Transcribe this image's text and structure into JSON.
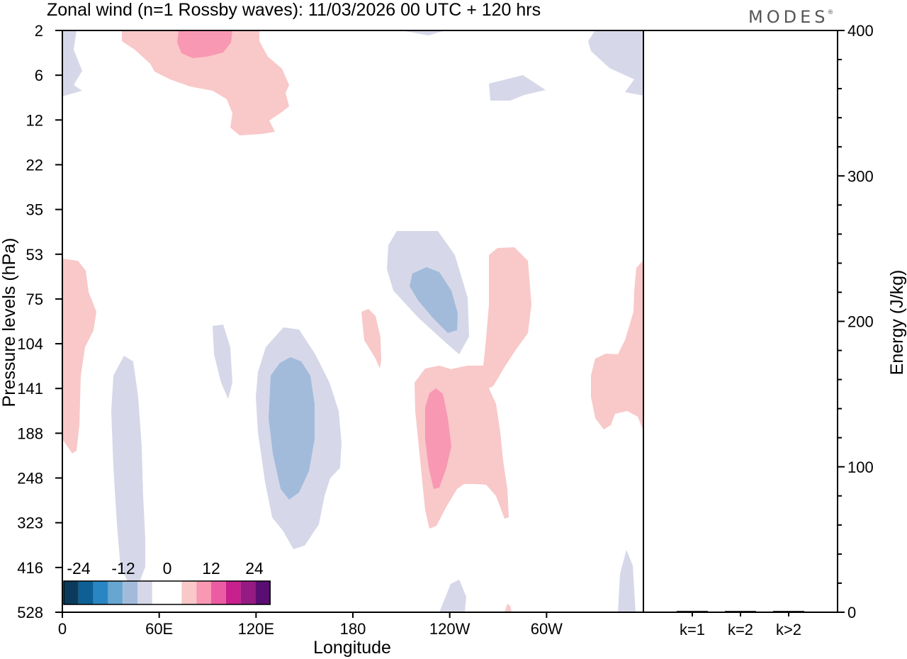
{
  "chart_data": {
    "type": "contour",
    "title": "Zonal wind (n=1 Rossby waves):  11/03/2026  00 UTC  + 120 hrs",
    "brand": "MODES",
    "brand_mark": "®",
    "xlabel": "Longitude",
    "ylabel": "Pressure levels (hPa)",
    "x_ticks": [
      "0",
      "60E",
      "120E",
      "180",
      "120W",
      "60W"
    ],
    "y_ticks": [
      "2",
      "6",
      "12",
      "22",
      "35",
      "53",
      "75",
      "104",
      "141",
      "188",
      "248",
      "323",
      "416",
      "528"
    ],
    "energy_panel": {
      "ylabel": "Energy (J/kg)",
      "ylim": [
        0,
        400
      ],
      "ticks": [
        "0",
        "100",
        "200",
        "300",
        "400"
      ],
      "categories": [
        "k=1",
        "k=2",
        "k>2"
      ],
      "values": [
        0.5,
        0.3,
        0.4
      ]
    },
    "colorbar": {
      "tick_labels": [
        "-24",
        "-12",
        "0",
        "12",
        "24"
      ],
      "colors": [
        "#0b3b5c",
        "#0d5f94",
        "#2a86c2",
        "#66a6d0",
        "#a3bbdb",
        "#d6d8e9",
        "#ffffff",
        "#ffffff",
        "#f9c8c8",
        "#f898b3",
        "#ec5ca2",
        "#c8208c",
        "#951a82",
        "#5a0d72"
      ]
    },
    "fill_colors": {
      "neg_weak": "#d6d8e9",
      "neg_mod": "#a3bbdb",
      "pos_weak": "#f9c8c8",
      "pos_mod": "#f898b3"
    }
  }
}
